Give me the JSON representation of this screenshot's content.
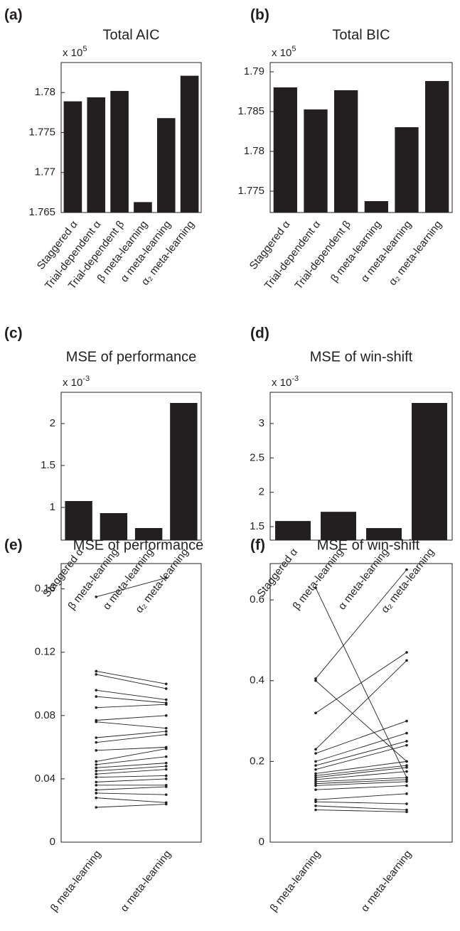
{
  "chart_data": [
    {
      "type": "bar",
      "panel_label": "(a)",
      "title": "Total AIC",
      "y_multiplier": "x 10",
      "y_multiplier_exponent": "5",
      "categories": [
        "Staggered α",
        "Trial-dependent α",
        "Trial-dependent β",
        "β meta-learning",
        "α meta-learning",
        "α₂ meta-learning"
      ],
      "values": [
        1.7789,
        1.7794,
        1.7802,
        1.7663,
        1.7768,
        1.7821
      ],
      "color": "#231f20",
      "ylim": [
        1.765,
        1.78375
      ],
      "yticks": [
        1.765,
        1.77,
        1.775,
        1.78
      ]
    },
    {
      "type": "bar",
      "panel_label": "(b)",
      "title": "Total BIC",
      "y_multiplier": "x 10",
      "y_multiplier_exponent": "5",
      "categories": [
        "Staggered α",
        "Trial-dependent α",
        "Trial-dependent β",
        "β meta-learning",
        "α meta-learning",
        "α₂ meta-learning"
      ],
      "values": [
        1.78804,
        1.78527,
        1.78768,
        1.77375,
        1.78304,
        1.78884
      ],
      "color": "#231f20",
      "ylim": [
        1.77232,
        1.79116
      ],
      "yticks": [
        1.775,
        1.78,
        1.785,
        1.79
      ]
    },
    {
      "type": "bar",
      "panel_label": "(c)",
      "title": "MSE of performance",
      "y_multiplier": "x 10",
      "y_multiplier_exponent": "-3",
      "categories": [
        "Staggered α",
        "β meta-learning",
        "α meta-learning",
        "α₂ meta-learning"
      ],
      "values": [
        1.076,
        0.932,
        0.754,
        2.246
      ],
      "color": "#231f20",
      "ylim": [
        0.61,
        2.373
      ],
      "yticks": [
        1,
        1.5,
        2
      ]
    },
    {
      "type": "bar",
      "panel_label": "(d)",
      "title": "MSE of win-shift",
      "y_multiplier": "x 10",
      "y_multiplier_exponent": "-3",
      "categories": [
        "Staggered α",
        "β meta-learning",
        "α meta-learning",
        "α₂ meta-learning"
      ],
      "values": [
        1.582,
        1.716,
        1.479,
        3.299
      ],
      "color": "#231f20",
      "ylim": [
        1.304,
        3.454
      ],
      "yticks": [
        1.5,
        2,
        2.5,
        3
      ]
    },
    {
      "type": "paired",
      "panel_label": "(e)",
      "title": "MSE of performance",
      "categories": [
        "β meta-learning",
        "α meta-learning"
      ],
      "color": "#231f20",
      "ylim": [
        0,
        0.176
      ],
      "yticks": [
        0,
        0.04,
        0.08,
        0.12,
        0.16
      ],
      "series": [
        {
          "values": [
            0.155,
            0.167
          ]
        },
        {
          "values": [
            0.108,
            0.1
          ]
        },
        {
          "values": [
            0.106,
            0.097
          ]
        },
        {
          "values": [
            0.096,
            0.09
          ]
        },
        {
          "values": [
            0.092,
            0.088
          ]
        },
        {
          "values": [
            0.085,
            0.087
          ]
        },
        {
          "values": [
            0.077,
            0.08
          ]
        },
        {
          "values": [
            0.076,
            0.072
          ]
        },
        {
          "values": [
            0.066,
            0.07
          ]
        },
        {
          "values": [
            0.063,
            0.068
          ]
        },
        {
          "values": [
            0.058,
            0.06
          ]
        },
        {
          "values": [
            0.051,
            0.059
          ]
        },
        {
          "values": [
            0.049,
            0.054
          ]
        },
        {
          "values": [
            0.047,
            0.05
          ]
        },
        {
          "values": [
            0.045,
            0.048
          ]
        },
        {
          "values": [
            0.043,
            0.046
          ]
        },
        {
          "values": [
            0.041,
            0.042
          ]
        },
        {
          "values": [
            0.038,
            0.04
          ]
        },
        {
          "values": [
            0.036,
            0.036
          ]
        },
        {
          "values": [
            0.033,
            0.035
          ]
        },
        {
          "values": [
            0.031,
            0.03
          ]
        },
        {
          "values": [
            0.028,
            0.025
          ]
        },
        {
          "values": [
            0.022,
            0.024
          ]
        }
      ]
    },
    {
      "type": "paired",
      "panel_label": "(f)",
      "title": "MSE of win-shift",
      "categories": [
        "β meta-learning",
        "α meta-learning"
      ],
      "color": "#231f20",
      "ylim": [
        0,
        0.69
      ],
      "yticks": [
        0,
        0.2,
        0.4,
        0.6
      ],
      "series": [
        {
          "values": [
            0.63,
            0.16
          ]
        },
        {
          "values": [
            0.405,
            0.675
          ]
        },
        {
          "values": [
            0.4,
            0.2
          ]
        },
        {
          "values": [
            0.32,
            0.47
          ]
        },
        {
          "values": [
            0.23,
            0.45
          ]
        },
        {
          "values": [
            0.22,
            0.3
          ]
        },
        {
          "values": [
            0.2,
            0.27
          ]
        },
        {
          "values": [
            0.19,
            0.25
          ]
        },
        {
          "values": [
            0.18,
            0.24
          ]
        },
        {
          "values": [
            0.17,
            0.2
          ]
        },
        {
          "values": [
            0.165,
            0.19
          ]
        },
        {
          "values": [
            0.16,
            0.185
          ]
        },
        {
          "values": [
            0.155,
            0.175
          ]
        },
        {
          "values": [
            0.15,
            0.16
          ]
        },
        {
          "values": [
            0.145,
            0.155
          ]
        },
        {
          "values": [
            0.14,
            0.15
          ]
        },
        {
          "values": [
            0.13,
            0.14
          ]
        },
        {
          "values": [
            0.105,
            0.12
          ]
        },
        {
          "values": [
            0.1,
            0.095
          ]
        },
        {
          "values": [
            0.09,
            0.08
          ]
        },
        {
          "values": [
            0.08,
            0.075
          ]
        }
      ]
    }
  ]
}
